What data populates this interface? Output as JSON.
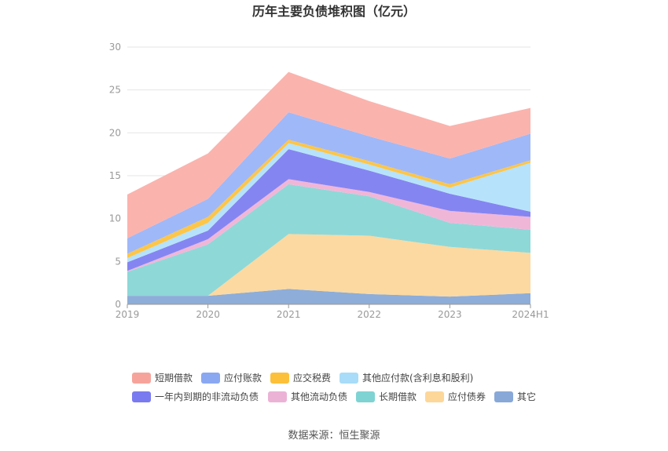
{
  "chart_data": {
    "type": "area",
    "stacked": true,
    "title": "历年主要负债堆积图（亿元）",
    "categories": [
      "2019",
      "2020",
      "2021",
      "2022",
      "2023",
      "2024H1"
    ],
    "ylim": [
      0,
      30
    ],
    "yticks": [
      "0",
      "5",
      "10",
      "15",
      "20",
      "25",
      "30"
    ],
    "grid": true,
    "legend_position": "bottom",
    "series": [
      {
        "name": "其它",
        "color": "#8eadd8",
        "values": [
          1.0,
          1.0,
          1.8,
          1.2,
          0.9,
          1.3
        ]
      },
      {
        "name": "应付债券",
        "color": "#fcd9a0",
        "values": [
          0.0,
          0.0,
          6.4,
          6.8,
          5.8,
          4.7
        ]
      },
      {
        "name": "长期借款",
        "color": "#8ed8d8",
        "values": [
          2.8,
          6.0,
          5.8,
          4.6,
          2.8,
          2.7
        ]
      },
      {
        "name": "其他流动负债",
        "color": "#f0b6d8",
        "values": [
          0.1,
          0.6,
          0.6,
          0.5,
          1.4,
          1.5
        ]
      },
      {
        "name": "一年内到期的非流动负债",
        "color": "#8585f2",
        "values": [
          1.0,
          1.0,
          3.5,
          2.5,
          2.0,
          0.6
        ]
      },
      {
        "name": "其他应付款(含利息和股利)",
        "color": "#b6e3fb",
        "values": [
          0.5,
          0.9,
          0.7,
          0.7,
          0.7,
          5.7
        ]
      },
      {
        "name": "应交税费",
        "color": "#fcc64a",
        "values": [
          0.5,
          0.7,
          0.4,
          0.4,
          0.4,
          0.3
        ]
      },
      {
        "name": "应付账款",
        "color": "#9fb8f8",
        "values": [
          1.8,
          2.1,
          3.2,
          2.9,
          3.0,
          3.1
        ]
      },
      {
        "name": "短期借款",
        "color": "#fbb3ad",
        "values": [
          5.1,
          5.3,
          4.7,
          4.1,
          3.8,
          3.0
        ]
      }
    ]
  },
  "legend": {
    "row1": [
      "短期借款",
      "应付账款",
      "应交税费",
      "其他应付款(含利息和股利)"
    ],
    "row2": [
      "一年内到期的非流动负债",
      "其他流动负债",
      "长期借款",
      "应付债券",
      "其它"
    ]
  },
  "legend_colors": {
    "短期借款": "#f6a49b",
    "应付账款": "#8aa8f2",
    "应交税费": "#fcc03a",
    "其他应付款(含利息和股利)": "#a8dcf8",
    "一年内到期的非流动负债": "#7a7af0",
    "其他流动负债": "#ecb2d6",
    "长期借款": "#7fd3d3",
    "应付债券": "#fdd79a",
    "其它": "#88a8d8"
  },
  "source_text": "数据来源：恒生聚源"
}
